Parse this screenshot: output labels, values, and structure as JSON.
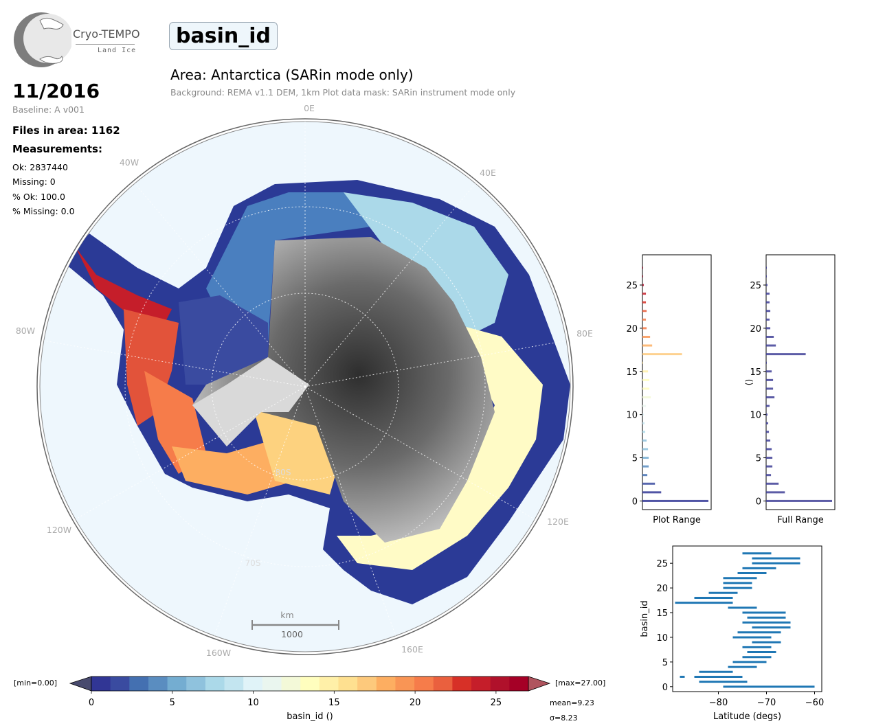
{
  "header": {
    "logo_title": "Cryo-TEMPO",
    "logo_subtitle": "Land Ice",
    "parameter": "basin_id",
    "area_title": "Area: Antarctica (SARin mode only)",
    "area_subtitle": "Background: REMA v1.1 DEM, 1km   Plot data mask: SARin instrument mode only"
  },
  "info": {
    "date": "11/2016",
    "baseline": "Baseline: A v001",
    "files": "Files in area: 1162",
    "measurements_heading": "Measurements:",
    "ok": "Ok: 2837440",
    "missing": "Missing: 0",
    "pct_ok": "% Ok: 100.0",
    "pct_missing": "% Missing: 0.0"
  },
  "map": {
    "longitude_labels": [
      "0E",
      "40E",
      "80E",
      "120E",
      "160E",
      "160W",
      "120W",
      "80W",
      "40W"
    ],
    "latitude_labels": [
      "80S",
      "70S"
    ],
    "scalebar_unit": "km",
    "scalebar_value": "1000"
  },
  "colorbar": {
    "min_label": "[min=0.00]",
    "max_label": "[max=27.00]",
    "ticks": [
      "0",
      "5",
      "10",
      "15",
      "20",
      "25"
    ],
    "label": "basin_id ()",
    "mean": "mean=9.23",
    "sigma": "σ=8.23",
    "colors": [
      "#313695",
      "#3a4ba0",
      "#4470b1",
      "#5a8dc0",
      "#74add1",
      "#8fc2dd",
      "#abd9e9",
      "#c3e5f0",
      "#e0f3f8",
      "#eaf6ef",
      "#f3f9d8",
      "#fffebe",
      "#fff0a8",
      "#fee090",
      "#fdc97c",
      "#fdae61",
      "#f99555",
      "#f67c4a",
      "#ea603e",
      "#d73027",
      "#c51e2a",
      "#b0112b",
      "#a50026"
    ]
  },
  "chart_data": [
    {
      "type": "bar",
      "orientation": "horizontal",
      "xlabel": "Plot Range",
      "ylabel": "",
      "yticks": [
        0,
        5,
        10,
        15,
        20,
        25
      ],
      "ylim": [
        -1,
        28.5
      ],
      "categories": [
        0,
        1,
        2,
        3,
        4,
        5,
        6,
        7,
        8,
        9,
        10,
        11,
        12,
        13,
        14,
        15,
        16,
        17,
        18,
        19,
        20,
        21,
        22,
        23,
        24,
        25,
        26,
        27
      ],
      "values": [
        95,
        27,
        18,
        7,
        9,
        9,
        8,
        6,
        4,
        3,
        2,
        5,
        12,
        10,
        10,
        8,
        1,
        57,
        14,
        11,
        6,
        5,
        6,
        5,
        5,
        2,
        1,
        1
      ]
    },
    {
      "type": "bar",
      "orientation": "horizontal",
      "xlabel": "Full Range",
      "ylabel": "()",
      "yticks": [
        0,
        5,
        10,
        15,
        20,
        25
      ],
      "ylim": [
        -1,
        28.5
      ],
      "categories": [
        0,
        1,
        2,
        3,
        4,
        5,
        6,
        7,
        8,
        9,
        10,
        11,
        12,
        13,
        14,
        15,
        16,
        17,
        18,
        19,
        20,
        21,
        22,
        23,
        24,
        25,
        26,
        27
      ],
      "values": [
        95,
        27,
        18,
        7,
        9,
        9,
        8,
        6,
        4,
        3,
        2,
        5,
        12,
        10,
        10,
        8,
        1,
        57,
        14,
        11,
        6,
        5,
        6,
        5,
        5,
        2,
        1,
        1
      ]
    },
    {
      "type": "bar",
      "orientation": "horizontal-range",
      "xlabel": "Latitude (degs)",
      "ylabel": "basin_id",
      "xticks": [
        -80,
        -70,
        -60
      ],
      "yticks": [
        0,
        5,
        10,
        15,
        20,
        25
      ],
      "xlim": [
        -89.5,
        -58.5
      ],
      "ylim": [
        -1,
        28.5
      ],
      "ranges": [
        [
          -79,
          -60
        ],
        [
          -84,
          -74
        ],
        [
          -88,
          -87
        ],
        [
          -85,
          -75
        ],
        [
          -84,
          -77
        ],
        [
          -78,
          -72
        ],
        [
          -77,
          -70
        ],
        [
          -75,
          -69
        ],
        [
          -74,
          -68
        ],
        [
          -75,
          -69
        ],
        [
          -73,
          -67
        ],
        [
          -77,
          -69
        ],
        [
          -76,
          -67
        ],
        [
          -73,
          -65
        ],
        [
          -75,
          -65
        ],
        [
          -74,
          -66
        ],
        [
          -75,
          -66
        ],
        [
          -78,
          -72
        ],
        [
          -89,
          -77
        ],
        [
          -85,
          -77
        ],
        [
          -82,
          -76
        ],
        [
          -79,
          -73
        ],
        [
          -79,
          -73
        ],
        [
          -79,
          -72
        ],
        [
          -76,
          -70
        ],
        [
          -75,
          -68
        ],
        [
          -73,
          -63
        ],
        [
          -73,
          -63
        ],
        [
          -75,
          -69
        ]
      ],
      "range_categories": [
        0,
        1,
        2,
        2,
        3,
        4,
        5,
        6,
        7,
        8,
        9,
        10,
        11,
        12,
        13,
        14,
        15,
        16,
        17,
        18,
        19,
        20,
        21,
        22,
        23,
        24,
        25,
        26,
        27
      ]
    }
  ]
}
